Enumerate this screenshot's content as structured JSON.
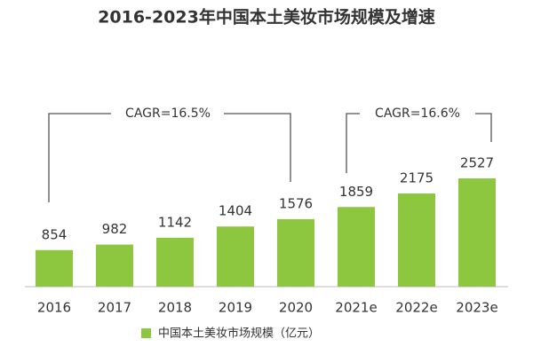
{
  "chart_data": {
    "type": "bar",
    "title": "2016-2023年中国本土美妆市场规模及增速",
    "categories": [
      "2016",
      "2017",
      "2018",
      "2019",
      "2020",
      "2021e",
      "2022e",
      "2023e"
    ],
    "series": [
      {
        "name": "中国本土美妆市场规模（亿元）",
        "color": "#8dc63f",
        "values": [
          854,
          982,
          1142,
          1404,
          1576,
          1859,
          2175,
          2527
        ]
      }
    ],
    "annotations": [
      "CAGR=16.5%",
      "CAGR=16.6%"
    ]
  }
}
